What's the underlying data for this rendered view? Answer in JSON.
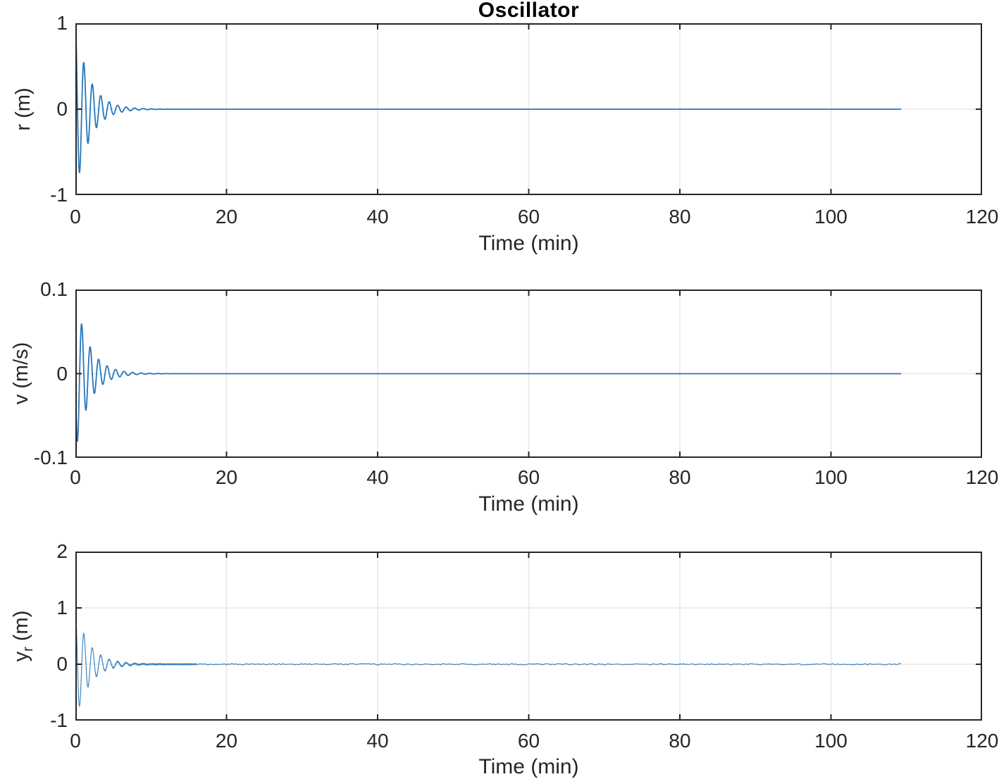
{
  "figure": {
    "title": "Oscillator"
  },
  "style": {
    "background": "#ffffff",
    "axis_color": "#262626",
    "tick_label_color": "#262626",
    "grid_color": "#e8e8e8",
    "line_color": "#2577bd"
  },
  "chart_data": [
    {
      "type": "line",
      "title": "Oscillator",
      "xlabel": "Time (min)",
      "ylabel": "r (m)",
      "ylabel_parts": {
        "pre": "r (m)",
        "sub": "",
        "post": ""
      },
      "xlim": [
        0,
        120
      ],
      "ylim": [
        -1,
        1
      ],
      "xticks": [
        0,
        20,
        40,
        60,
        80,
        100,
        120
      ],
      "yticks": [
        1,
        0,
        -1
      ],
      "grid": true,
      "legend": null,
      "series": [
        {
          "name": "r",
          "color": "#2577bd",
          "line_width": 1.8,
          "model": {
            "type": "damped_cos",
            "form": "A*exp(-k*t)*cos(w*t)",
            "A": 1,
            "k": 0.55,
            "w_rad_per_min": 5.6,
            "period_min": 1.12,
            "t_start": 0,
            "t_end": 109.4,
            "noise_amp": 0
          },
          "initial_value": 1,
          "settles_to": 0,
          "settling_time_min": 10,
          "observed_extrema": [
            {
              "t": 0,
              "y": 1.0
            },
            {
              "t": 0.56,
              "y": -0.73
            },
            {
              "t": 1.12,
              "y": 0.55
            },
            {
              "t": 1.68,
              "y": -0.43
            },
            {
              "t": 2.24,
              "y": 0.33
            },
            {
              "t": 2.8,
              "y": -0.25
            },
            {
              "t": 3.36,
              "y": 0.19
            },
            {
              "t": 4.5,
              "y": -0.1
            },
            {
              "t": 10,
              "y": 0.0
            }
          ]
        }
      ]
    },
    {
      "type": "line",
      "title": "",
      "xlabel": "Time (min)",
      "ylabel": "v (m/s)",
      "ylabel_parts": {
        "pre": "v (m/s)",
        "sub": "",
        "post": ""
      },
      "xlim": [
        0,
        120
      ],
      "ylim": [
        -0.1,
        0.1
      ],
      "xticks": [
        0,
        20,
        40,
        60,
        80,
        100,
        120
      ],
      "yticks": [
        0.1,
        0,
        -0.1
      ],
      "grid": true,
      "legend": null,
      "series": [
        {
          "name": "v",
          "color": "#2577bd",
          "line_width": 1.8,
          "model": {
            "type": "damped_sin_neg",
            "form": "-A*exp(-k*t)*sin(w*t)",
            "A": 0.0933,
            "k": 0.55,
            "w_rad_per_min": 5.6,
            "period_min": 1.12,
            "t_start": 0,
            "t_end": 109.4,
            "noise_amp": 0
          },
          "initial_value": 0,
          "settles_to": 0,
          "settling_time_min": 10,
          "observed_extrema": [
            {
              "t": 0,
              "y": 0.0
            },
            {
              "t": 0.3,
              "y": -0.087
            },
            {
              "t": 0.85,
              "y": 0.063
            },
            {
              "t": 1.4,
              "y": -0.048
            },
            {
              "t": 1.96,
              "y": 0.036
            },
            {
              "t": 2.52,
              "y": -0.027
            },
            {
              "t": 10,
              "y": 0.0
            }
          ]
        }
      ]
    },
    {
      "type": "line",
      "title": "",
      "xlabel": "Time (min)",
      "ylabel": "y_r (m)",
      "ylabel_parts": {
        "pre": "y",
        "sub": "r",
        "post": " (m)"
      },
      "xlim": [
        0,
        120
      ],
      "ylim": [
        -1,
        2
      ],
      "xticks": [
        0,
        20,
        40,
        60,
        80,
        100,
        120
      ],
      "yticks": [
        2,
        1,
        0,
        -1
      ],
      "grid": true,
      "legend": null,
      "series": [
        {
          "name": "y_r",
          "color": "#2577bd",
          "line_width": 1.2,
          "model": {
            "type": "damped_cos",
            "form": "A*exp(-k*t)*cos(w*t) + measurement noise",
            "A": 1,
            "k": 0.55,
            "w_rad_per_min": 5.6,
            "period_min": 1.12,
            "t_start": 0,
            "t_end": 109.4,
            "noise_amp": 0.012
          },
          "initial_value": 1,
          "settles_to": 0,
          "settling_time_min": 10,
          "observed_extrema": [
            {
              "t": 0,
              "y": 1.0
            },
            {
              "t": 0.56,
              "y": -0.73
            },
            {
              "t": 1.12,
              "y": 0.55
            },
            {
              "t": 1.68,
              "y": -0.43
            },
            {
              "t": 2.24,
              "y": 0.33
            },
            {
              "t": 10,
              "y": 0.0
            }
          ]
        }
      ]
    }
  ]
}
